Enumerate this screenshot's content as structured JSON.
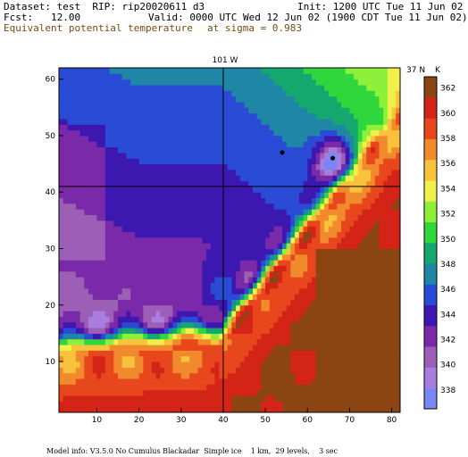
{
  "header": {
    "dataset": "Dataset: test  RIP: rip20020611 d3",
    "init": "Init: 1200 UTC Tue 11 Jun 02",
    "fcst": "Fcst:   12.00",
    "valid": "Valid: 0000 UTC Wed 12 Jun 02 (1900 CDT Tue 11 Jun 02)",
    "field": "Equivalent potential temperature",
    "level": "at sigma = 0.983"
  },
  "map_labels": {
    "meridian": "101 W",
    "parallel": "37 N"
  },
  "colorbar": {
    "unit": "K",
    "levels": [
      338,
      340,
      342,
      344,
      346,
      348,
      350,
      352,
      354,
      356,
      358,
      360,
      362
    ],
    "colors": [
      "#7b86f5",
      "#a77ee0",
      "#9d5fb6",
      "#7a2aa8",
      "#3d18b0",
      "#2a4bd6",
      "#1f86a6",
      "#14a86e",
      "#2fd63c",
      "#8ef03a",
      "#f0f04a",
      "#f8c23c",
      "#f08a2c",
      "#e8461c",
      "#d42418",
      "#8b4513"
    ]
  },
  "footer": "Model info: V3.5.0 No Cumulus Blackadar  Simple ice    1 km,  29 levels,    3 sec",
  "chart_data": {
    "type": "heatmap",
    "title": "Equivalent potential temperature",
    "subtitle": "at sigma = 0.983",
    "xlim": [
      1,
      82
    ],
    "ylim": [
      1,
      62
    ],
    "xticks": [
      10,
      20,
      30,
      40,
      50,
      60,
      70,
      80
    ],
    "yticks": [
      10,
      20,
      30,
      40,
      50,
      60
    ],
    "cross_lines": {
      "x": 40,
      "y": 41
    },
    "markers": [
      {
        "x": 54,
        "y": 47
      },
      {
        "x": 66,
        "y": 46
      }
    ],
    "value_min": 338,
    "value_max": 362
  }
}
